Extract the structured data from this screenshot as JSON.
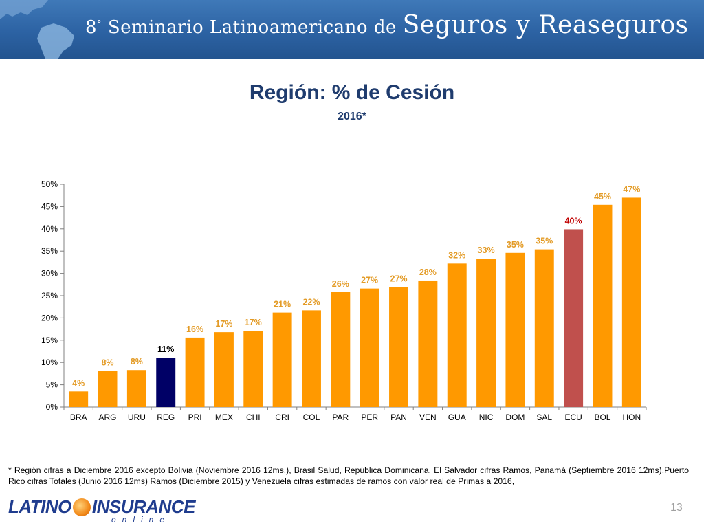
{
  "banner": {
    "ordinal": "8",
    "ordinal_mark": "°",
    "text_small": "Seminario Latinoamericano de",
    "text_big": "Seguros y Reaseguros"
  },
  "title": "Región:  % de Cesión",
  "subtitle": "2016*",
  "chart_data": {
    "type": "bar",
    "categories": [
      "BRA",
      "ARG",
      "URU",
      "REG",
      "PRI",
      "MEX",
      "CHI",
      "CRI",
      "COL",
      "PAR",
      "PER",
      "PAN",
      "VEN",
      "GUA",
      "NIC",
      "DOM",
      "SAL",
      "ECU",
      "BOL",
      "HON"
    ],
    "values": [
      3.5,
      8.1,
      8.3,
      11.1,
      15.6,
      16.8,
      17.1,
      21.2,
      21.7,
      25.8,
      26.6,
      26.9,
      28.4,
      32.2,
      33.3,
      34.6,
      35.4,
      39.9,
      45.4,
      47.0
    ],
    "labels": [
      "4%",
      "8%",
      "8%",
      "11%",
      "16%",
      "17%",
      "17%",
      "21%",
      "22%",
      "26%",
      "27%",
      "27%",
      "28%",
      "32%",
      "33%",
      "35%",
      "35%",
      "40%",
      "45%",
      "47%"
    ],
    "colors": {
      "default": "#ff9900",
      "REG": "#000066",
      "ECU": "#c0504d",
      "label_default": "#e39b26",
      "label_REG": "#000000",
      "label_ECU": "#c00000"
    },
    "yticks": [
      "0%",
      "5%",
      "10%",
      "15%",
      "20%",
      "25%",
      "30%",
      "35%",
      "40%",
      "45%",
      "50%"
    ],
    "ylim": [
      0,
      50
    ],
    "grid": false,
    "legend": "none"
  },
  "footnote": "* Región cifras a Diciembre 2016 excepto Bolivia (Noviembre 2016 12ms.), Brasil Salud, República Dominicana, El Salvador cifras Ramos, Panamá (Septiembre 2016 12ms),Puerto Rico cifras Totales (Junio 2016 12ms) Ramos (Diciembre 2015) y Venezuela cifras estimadas de ramos con valor real de Primas a 2016,",
  "logo": {
    "part1": "LATINO",
    "part2": "INSURANCE",
    "tagline": "online"
  },
  "page_number": "13"
}
